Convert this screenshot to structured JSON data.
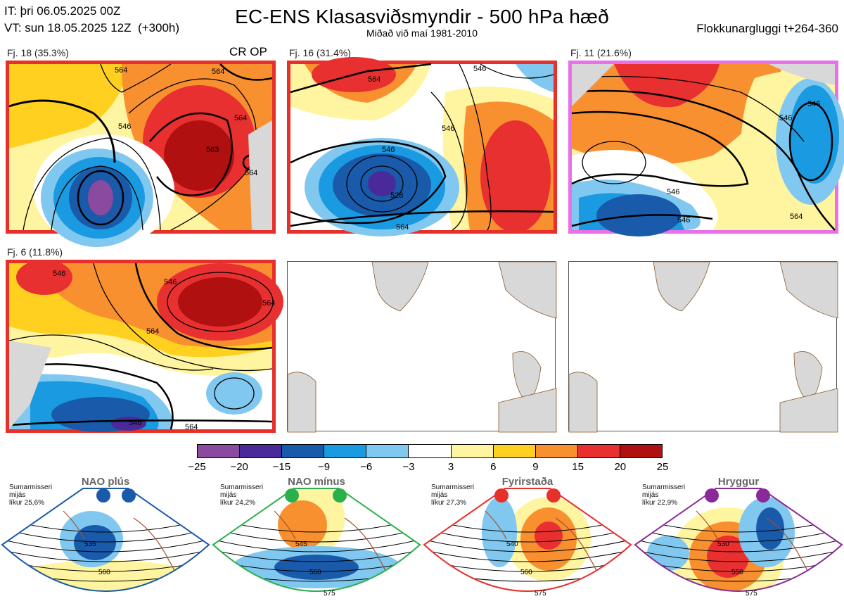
{
  "header": {
    "it_line": "IT: þri 06.05.2025 00Z",
    "vt_line": "VT: sun 18.05.2025 12Z  (+300h)",
    "title": "EC-ENS Klasasviðsmyndir - 500 hPa hæð",
    "subtitle": "Miðað við maí 1981-2010",
    "window": "Flokkunargluggi t+264-360"
  },
  "panels": [
    {
      "label": "Fj. 18 (35.3%)",
      "extra": "CR OP",
      "border_color": "#e8302a",
      "contours": [
        "564",
        "564",
        "546",
        "564",
        "564",
        "563"
      ]
    },
    {
      "label": "Fj. 16 (31.4%)",
      "border_color": "#e8302a",
      "contours": [
        "564",
        "546",
        "546",
        "528",
        "564",
        "546"
      ]
    },
    {
      "label": "Fj. 11 (21.6%)",
      "border_color": "#e870e8",
      "contours": [
        "546",
        "546",
        "564",
        "546",
        "546"
      ]
    },
    {
      "label": "Fj. 6 (11.8%)",
      "border_color": "#e8302a",
      "contours": [
        "546",
        "546",
        "564",
        "546",
        "564",
        "564"
      ]
    }
  ],
  "colorbar": {
    "colors": [
      "#8a4aa0",
      "#4a2a9a",
      "#1a5aaa",
      "#1a9ae0",
      "#80c8f0",
      "#ffffff",
      "#fff4a0",
      "#ffd020",
      "#f89030",
      "#e83030",
      "#b01010"
    ],
    "ticks": [
      "−25",
      "−20",
      "−15",
      "−9",
      "−6",
      "−3",
      "3",
      "6",
      "9",
      "15",
      "20",
      "25"
    ]
  },
  "regimes": [
    {
      "name": "NAO plús",
      "season": "Sumarmisseri",
      "metric": "mijás",
      "prob": "líkur 25,6%",
      "color": "#1a5aaa",
      "contours": [
        "535",
        "560"
      ]
    },
    {
      "name": "NAO mínus",
      "season": "Sumarmisseri",
      "metric": "mijás",
      "prob": "líkur 24,2%",
      "color": "#2ab04a",
      "contours": [
        "545",
        "560",
        "575"
      ]
    },
    {
      "name": "Fyrirstaða",
      "season": "Sumarmisseri",
      "metric": "mijás",
      "prob": "líkur 27,3%",
      "color": "#e8302a",
      "contours": [
        "540",
        "560",
        "575"
      ]
    },
    {
      "name": "Hryggur",
      "season": "Sumarmisseri",
      "metric": "mijás",
      "prob": "líkur 22,9%",
      "color": "#8a2a9a",
      "contours": [
        "530",
        "550",
        "575"
      ]
    }
  ]
}
